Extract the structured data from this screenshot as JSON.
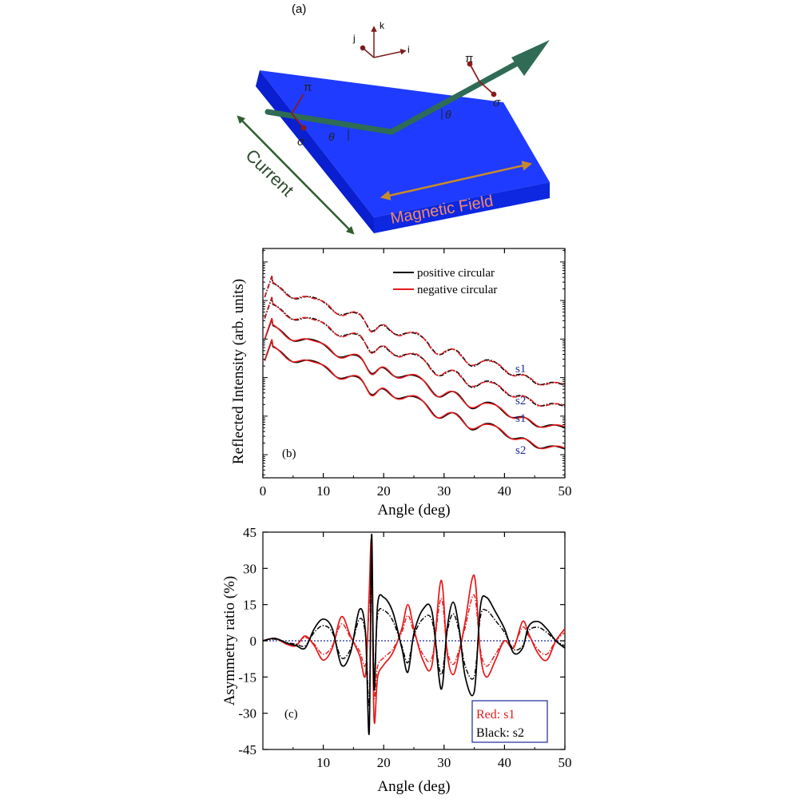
{
  "panel_a": {
    "label": "(a)",
    "axes": {
      "i": "i",
      "j": "j",
      "k": "k"
    },
    "pi_symbol": "π",
    "sigma_symbol": "σ",
    "theta_symbol": "θ",
    "current_label": "Current",
    "field_label": "Magnetic Field",
    "colors": {
      "slab_top": "#1f3bff",
      "slab_side": "#0a1fd0",
      "beam": "#2f6b55",
      "current": "#2e5e2e",
      "field_arrow": "#c98a2a",
      "field_text": "#f08a6a",
      "pol": "#8b1a1a"
    }
  },
  "chart_data": [
    {
      "panel_label": "(b)",
      "type": "line",
      "xlabel": "Angle (deg)",
      "ylabel": "Reflected Intensity (arb. units)",
      "xlim": [
        0,
        50
      ],
      "xticks": [
        0,
        10,
        20,
        30,
        40,
        50
      ],
      "yscale": "log",
      "yticklabels": "none",
      "legend": {
        "placement": "top-right",
        "entries": [
          {
            "label": "positive circular",
            "color": "#000000"
          },
          {
            "label": "negative circular",
            "color": "#e41a1c"
          }
        ]
      },
      "curve_labels": [
        "s1",
        "s2",
        "s1",
        "s2"
      ],
      "curve_label_color": "#1a2a9a",
      "series": [
        {
          "curve": "s1",
          "style": "dash-dot",
          "offset_decades": 3.0,
          "polarization": "positive circular",
          "color": "#000000"
        },
        {
          "curve": "s1",
          "style": "dash-dot",
          "offset_decades": 3.0,
          "polarization": "negative circular",
          "color": "#e41a1c"
        },
        {
          "curve": "s2",
          "style": "dash-dot",
          "offset_decades": 2.0,
          "polarization": "positive circular",
          "color": "#000000"
        },
        {
          "curve": "s2",
          "style": "dash-dot",
          "offset_decades": 2.0,
          "polarization": "negative circular",
          "color": "#e41a1c"
        },
        {
          "curve": "s1",
          "style": "solid",
          "offset_decades": 1.0,
          "polarization": "positive circular",
          "color": "#000000"
        },
        {
          "curve": "s1",
          "style": "solid",
          "offset_decades": 1.0,
          "polarization": "negative circular",
          "color": "#e41a1c"
        },
        {
          "curve": "s2",
          "style": "solid",
          "offset_decades": 0.0,
          "polarization": "positive circular",
          "color": "#000000"
        },
        {
          "curve": "s2",
          "style": "solid",
          "offset_decades": 0.0,
          "polarization": "negative circular",
          "color": "#e41a1c"
        }
      ],
      "minima_angles": [
        5,
        12.5,
        18,
        22,
        29,
        34.5,
        41,
        45.5
      ]
    },
    {
      "panel_label": "(c)",
      "type": "line",
      "xlabel": "Angle (deg)",
      "ylabel": "Asymmetry ratio (%)",
      "xlim": [
        0,
        50
      ],
      "ylim": [
        -45,
        45
      ],
      "xticks": [
        10,
        20,
        30,
        40,
        50
      ],
      "yticks": [
        -45,
        -30,
        -15,
        0,
        15,
        30,
        45
      ],
      "zero_line": {
        "y": 0,
        "style": "dotted",
        "color": "#1a2a9a"
      },
      "legend": {
        "placement": "bottom-right",
        "entries": [
          {
            "label": "Red: s1",
            "color": "#e41a1c"
          },
          {
            "label": "Black: s2",
            "color": "#000000"
          }
        ]
      },
      "series": [
        {
          "name": "Red: s1",
          "group": "s1",
          "color": "#e41a1c",
          "points": [
            [
              0,
              0
            ],
            [
              2,
              1
            ],
            [
              4,
              -1.5
            ],
            [
              5.5,
              -2
            ],
            [
              7,
              2
            ],
            [
              8.5,
              -2
            ],
            [
              10,
              -8
            ],
            [
              11.5,
              -3
            ],
            [
              13,
              10
            ],
            [
              14.5,
              2
            ],
            [
              16,
              -6
            ],
            [
              17,
              -14
            ],
            [
              17.6,
              20
            ],
            [
              18,
              40
            ],
            [
              18.4,
              -32
            ],
            [
              19,
              -15
            ],
            [
              20,
              -10
            ],
            [
              21.5,
              -5
            ],
            [
              23,
              5
            ],
            [
              24,
              15
            ],
            [
              25,
              5
            ],
            [
              26.5,
              -8
            ],
            [
              28,
              -10
            ],
            [
              29.5,
              25
            ],
            [
              30.5,
              -5
            ],
            [
              31.5,
              -14
            ],
            [
              32.5,
              -5
            ],
            [
              33.5,
              8
            ],
            [
              35,
              27
            ],
            [
              36,
              -5
            ],
            [
              37,
              -15
            ],
            [
              38.5,
              -8
            ],
            [
              40,
              0
            ],
            [
              41.5,
              -3
            ],
            [
              43,
              8
            ],
            [
              44,
              3
            ],
            [
              45.5,
              -5
            ],
            [
              47,
              -8
            ],
            [
              48.5,
              0
            ],
            [
              50,
              5
            ]
          ]
        },
        {
          "name": "Black: s2",
          "group": "s2",
          "color": "#000000",
          "points": [
            [
              0,
              0
            ],
            [
              2,
              1
            ],
            [
              4,
              -1
            ],
            [
              5.5,
              -2
            ],
            [
              7,
              -3
            ],
            [
              8.5,
              5
            ],
            [
              10,
              9
            ],
            [
              11.5,
              5
            ],
            [
              13,
              -10
            ],
            [
              14.5,
              -5
            ],
            [
              16,
              13
            ],
            [
              17,
              3
            ],
            [
              17.6,
              -38
            ],
            [
              18,
              44
            ],
            [
              18.4,
              -20
            ],
            [
              19,
              15
            ],
            [
              20,
              18
            ],
            [
              21.5,
              12
            ],
            [
              23,
              -3
            ],
            [
              24,
              -13
            ],
            [
              25,
              3
            ],
            [
              26.5,
              13
            ],
            [
              28,
              12
            ],
            [
              29.5,
              -20
            ],
            [
              30.5,
              5
            ],
            [
              31.5,
              16
            ],
            [
              32.5,
              5
            ],
            [
              33.5,
              -15
            ],
            [
              35,
              -21
            ],
            [
              36,
              14
            ],
            [
              37,
              18
            ],
            [
              38.5,
              12
            ],
            [
              40,
              5
            ],
            [
              41.5,
              -5
            ],
            [
              43,
              -3
            ],
            [
              44,
              6
            ],
            [
              45.5,
              8
            ],
            [
              47,
              5
            ],
            [
              48.5,
              0
            ],
            [
              50,
              -3
            ]
          ]
        }
      ]
    }
  ]
}
